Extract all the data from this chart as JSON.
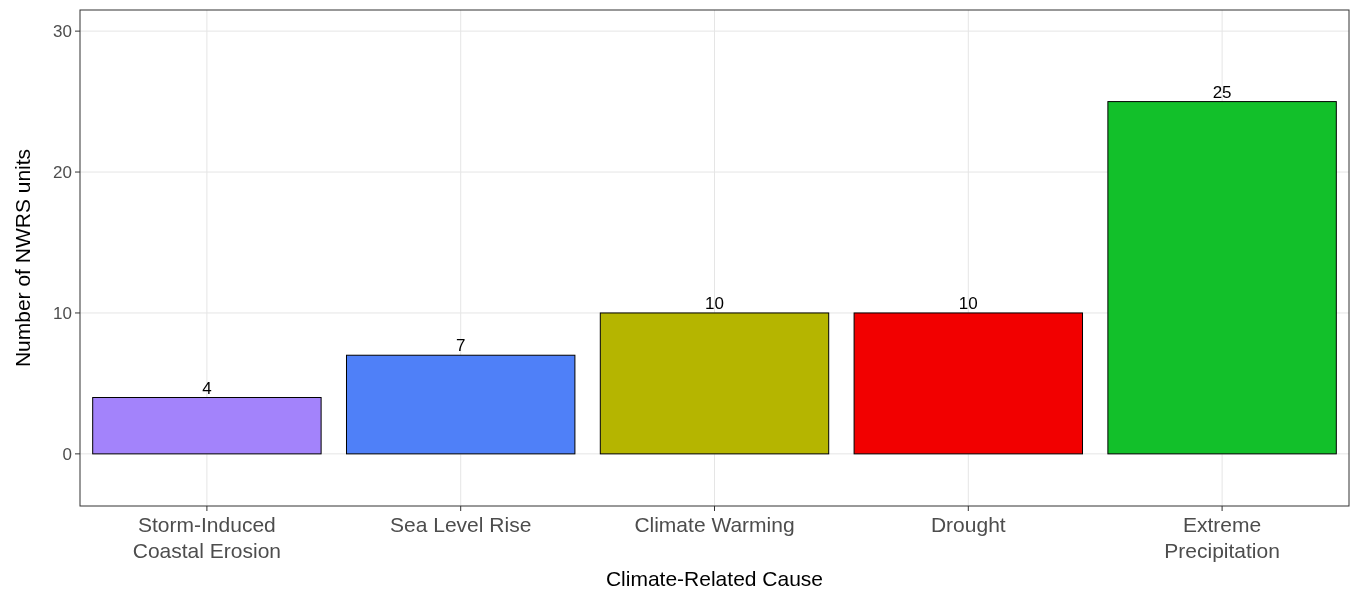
{
  "chart_data": {
    "type": "bar",
    "xlabel": "Climate-Related Cause",
    "ylabel": "Number of NWRS units",
    "categories": [
      "Storm-Induced\nCoastal Erosion",
      "Sea Level Rise",
      "Climate Warming",
      "Drought",
      "Extreme\nPrecipitation"
    ],
    "values": [
      4,
      7,
      10,
      10,
      25
    ],
    "colors": [
      "#a383fb",
      "#4f80f8",
      "#b5b500",
      "#f20000",
      "#12c02a"
    ],
    "ylim": [
      -3.7,
      31.5
    ],
    "yticks": [
      0,
      10,
      20,
      30
    ],
    "grid": true,
    "data_labels": true
  }
}
